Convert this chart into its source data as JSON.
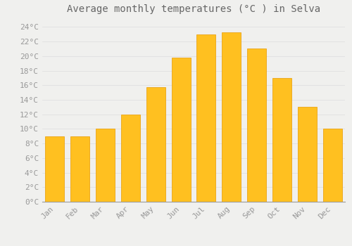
{
  "title": "Average monthly temperatures (°C ) in Selva",
  "months": [
    "Jan",
    "Feb",
    "Mar",
    "Apr",
    "May",
    "Jun",
    "Jul",
    "Aug",
    "Sep",
    "Oct",
    "Nov",
    "Dec"
  ],
  "temperatures": [
    9,
    9,
    10,
    12,
    15.7,
    19.8,
    23,
    23.3,
    21,
    17,
    13,
    10
  ],
  "bar_color_top": "#FFC020",
  "bar_color_bottom": "#F5A623",
  "bar_edge_color": "#E89A00",
  "background_color": "#F0F0EE",
  "grid_color": "#DDDDDD",
  "ylim": [
    0,
    25
  ],
  "yticks": [
    0,
    2,
    4,
    6,
    8,
    10,
    12,
    14,
    16,
    18,
    20,
    22,
    24
  ],
  "ylabel_suffix": "°C",
  "title_fontsize": 10,
  "tick_fontsize": 8,
  "tick_font_color": "#999999"
}
